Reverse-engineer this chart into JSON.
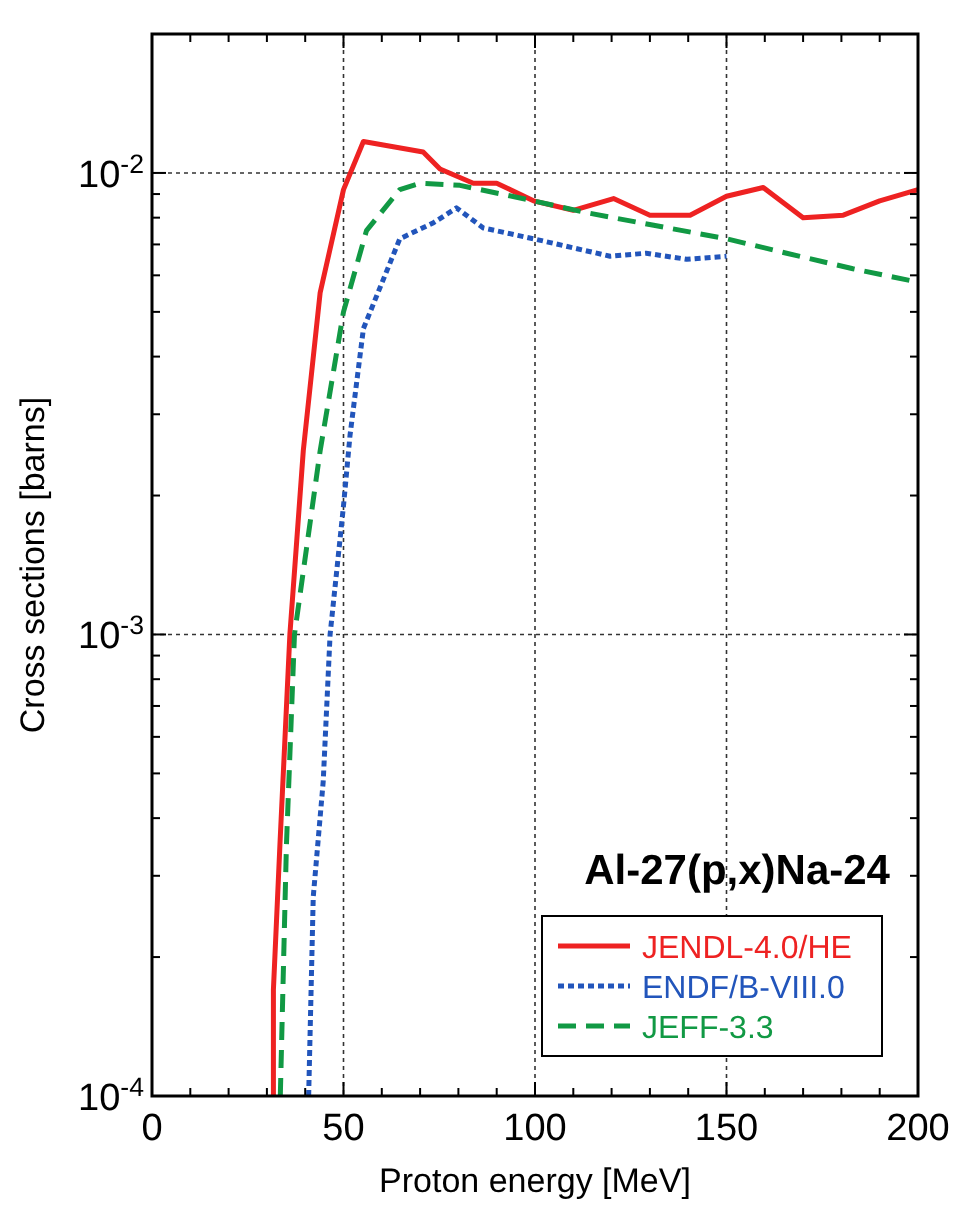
{
  "chart_data": {
    "type": "line",
    "title": "Al-27(p,x)Na-24",
    "xlabel": "Proton energy [MeV]",
    "ylabel": "Cross sections [barns]",
    "log": "y",
    "grid": true,
    "legend": "bottom right",
    "xlim": [
      0,
      200
    ],
    "ylim": [
      0.0001,
      0.02
    ],
    "xticks": [
      0,
      {
        "value": 10,
        "label": null
      },
      {
        "value": 20,
        "label": null
      },
      {
        "value": 30,
        "label": null
      },
      {
        "value": 40,
        "label": null
      },
      50,
      {
        "value": 60,
        "label": null
      },
      {
        "value": 70,
        "label": null
      },
      {
        "value": 80,
        "label": null
      },
      {
        "value": 90,
        "label": null
      },
      100,
      {
        "value": 110,
        "label": null
      },
      {
        "value": 120,
        "label": null
      },
      {
        "value": 130,
        "label": null
      },
      {
        "value": 140,
        "label": null
      },
      150,
      {
        "value": 160,
        "label": null
      },
      {
        "value": 170,
        "label": null
      },
      {
        "value": 180,
        "label": null
      },
      {
        "value": 190,
        "label": null
      },
      200
    ],
    "yticks": [
      {
        "value": 0.0001,
        "label": "10$^{-4}$"
      },
      {
        "value": 0.0002,
        "label": null
      },
      {
        "value": 0.0003,
        "label": null
      },
      {
        "value": 0.0004,
        "label": null
      },
      {
        "value": 0.0005,
        "label": null
      },
      {
        "value": 0.0006,
        "label": null
      },
      {
        "value": 0.0007,
        "label": null
      },
      {
        "value": 0.0008,
        "label": null
      },
      {
        "value": 0.0009,
        "label": null
      },
      {
        "value": 0.001,
        "label": "10$^{-3}$"
      },
      {
        "value": 0.002,
        "label": null
      },
      {
        "value": 0.003,
        "label": null
      },
      {
        "value": 0.004,
        "label": null
      },
      {
        "value": 0.005,
        "label": null
      },
      {
        "value": 0.006,
        "label": null
      },
      {
        "value": 0.007,
        "label": null
      },
      {
        "value": 0.008,
        "label": null
      },
      {
        "value": 0.009,
        "label": null
      },
      {
        "value": 0.01,
        "label": "10$^{-2}$"
      },
      {
        "value": 0.02,
        "label": null
      }
    ],
    "series": [
      {
        "name": "JENDL-4.0/HE",
        "color": "#ee2222",
        "line_style": "solid",
        "x": [
          31.7,
          31.7,
          33.4,
          36,
          37.8,
          39.5,
          43.9,
          50,
          55.2,
          70.8,
          75.2,
          83.9,
          90,
          99.6,
          110,
          120.5,
          130,
          140.5,
          150,
          159.6,
          170,
          180.5,
          190,
          200
        ],
        "values": [
          0.0001,
          0.00017,
          0.00035,
          0.001,
          0.0016,
          0.0025,
          0.0055,
          0.0092,
          0.0117,
          0.0111,
          0.0102,
          0.0095,
          0.0095,
          0.0087,
          0.0083,
          0.0088,
          0.0081,
          0.0081,
          0.0089,
          0.0093,
          0.008,
          0.0081,
          0.0087,
          0.0092
        ]
      },
      {
        "name": "ENDF/B-VIII.0",
        "color": "#2255bb",
        "line_style": "dotted",
        "x": [
          40.9,
          42.1,
          44.7,
          46.5,
          50,
          51.7,
          55.2,
          64.7,
          73.5,
          79.5,
          86.5,
          99.6,
          119.6,
          129,
          139.6,
          150
        ],
        "values": [
          0.0001,
          0.00027,
          0.00048,
          0.001,
          0.0019,
          0.0027,
          0.0046,
          0.0072,
          0.0078,
          0.0084,
          0.0076,
          0.0072,
          0.0066,
          0.0067,
          0.0065,
          0.0066
        ]
      },
      {
        "name": "JEFF-3.3",
        "color": "#119944",
        "line_style": "dashed",
        "x": [
          33.5,
          35.1,
          37.2,
          43.9,
          50,
          56,
          64.7,
          70,
          80.4,
          99.6,
          113.5,
          131,
          150,
          165.7,
          183,
          200
        ],
        "values": [
          0.0001,
          0.00035,
          0.001,
          0.0025,
          0.005,
          0.0075,
          0.0092,
          0.0095,
          0.0094,
          0.0087,
          0.0082,
          0.0077,
          0.0072,
          0.0067,
          0.0062,
          0.0058
        ]
      }
    ]
  }
}
